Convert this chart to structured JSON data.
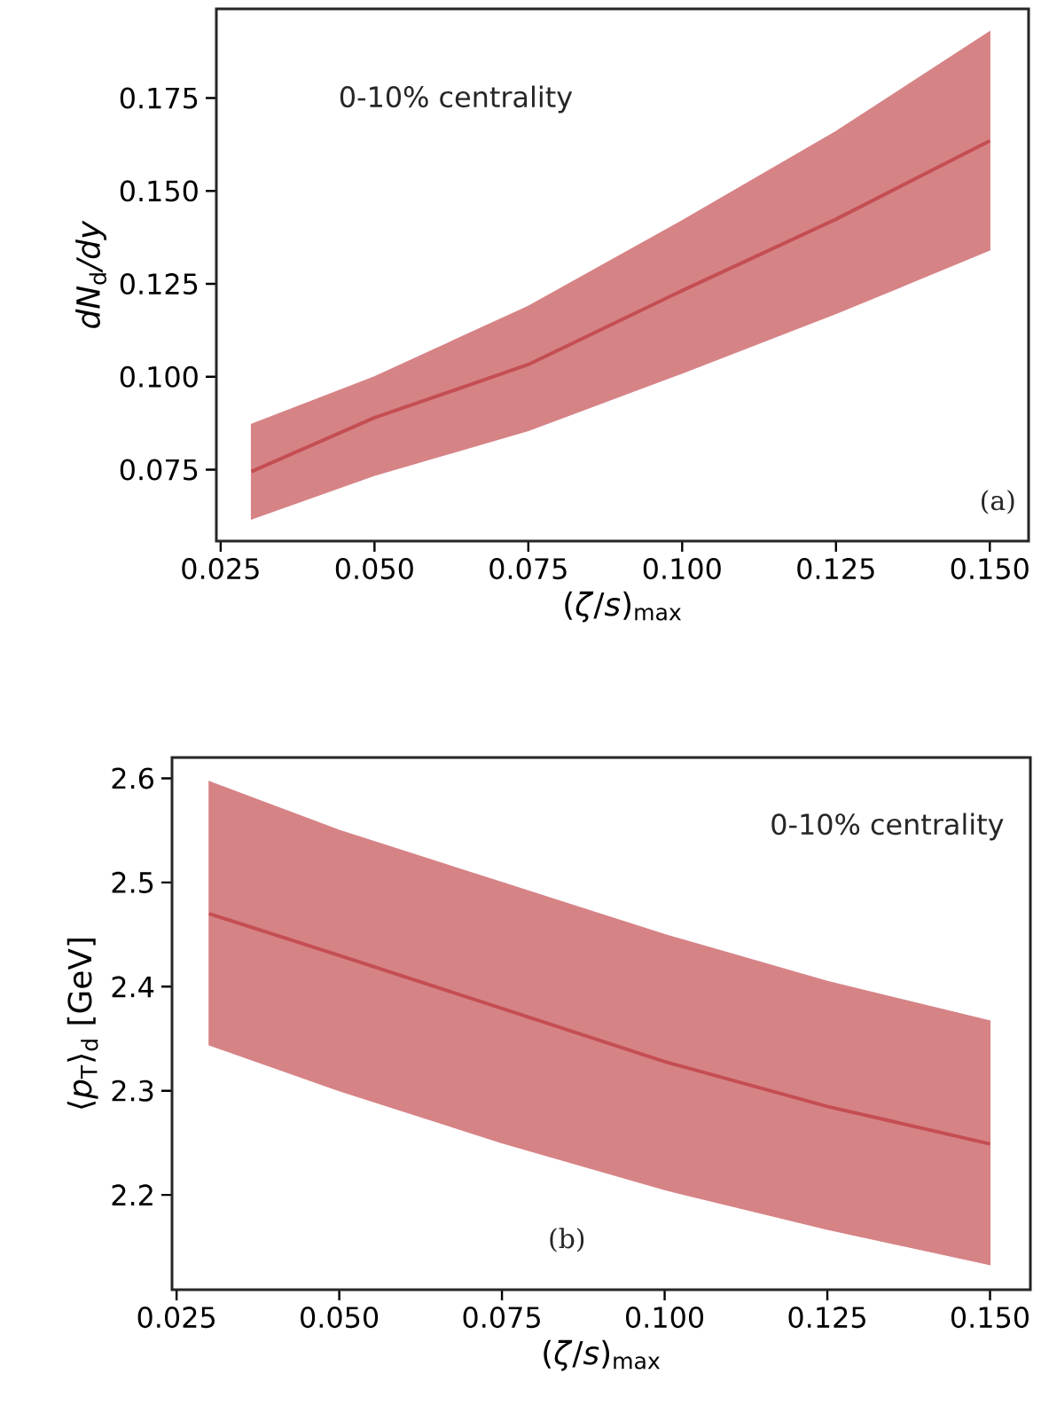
{
  "chart_data": [
    {
      "type": "line",
      "xlabel": "(*ζ*/*s*)$_{max}$",
      "ylabel": "*dN*$_{d}$*/dy*",
      "annotations": [
        "0-10% centrality",
        "(a)"
      ],
      "xlim": [
        0.0243,
        0.1563
      ],
      "ylim": [
        0.0558,
        0.199
      ],
      "xticks": [
        0.025,
        {
          "value": 0.05,
          "label": "0.050"
        },
        0.075,
        {
          "value": 0.1,
          "label": "0.100"
        },
        0.125,
        {
          "value": 0.15,
          "label": "0.150"
        }
      ],
      "yticks": [
        0.075,
        {
          "value": 0.1,
          "label": "0.100"
        },
        0.125,
        {
          "value": 0.15,
          "label": "0.150"
        },
        0.175
      ],
      "series": [
        {
          "color": "#c44e52",
          "x": [
            0.03,
            0.05,
            0.075,
            0.1,
            0.125,
            0.15
          ],
          "values": [
            0.0745,
            0.089,
            0.1033,
            0.1232,
            0.1424,
            0.1635
          ],
          "lower": [
            0.0617,
            0.0735,
            0.0855,
            0.101,
            0.117,
            0.1341
          ],
          "upper": [
            0.0872,
            0.1,
            0.119,
            0.142,
            0.166,
            0.1929
          ]
        }
      ]
    },
    {
      "type": "line",
      "xlabel": "(*ζ*/*s*)$_{max}$",
      "ylabel": "⟨*p*$_{T}$⟩$_{d}$ [GeV]",
      "annotations": [
        "0-10% centrality",
        "(b)"
      ],
      "xlim": [
        0.0243,
        0.1562
      ],
      "ylim": [
        2.109,
        2.62
      ],
      "xticks": [
        0.025,
        {
          "value": 0.05,
          "label": "0.050"
        },
        0.075,
        {
          "value": 0.1,
          "label": "0.100"
        },
        0.125,
        {
          "value": 0.15,
          "label": "0.150"
        }
      ],
      "yticks": [
        2.2,
        2.3,
        2.4,
        2.5,
        2.6
      ],
      "series": [
        {
          "color": "#c44e52",
          "x": [
            0.03,
            0.05,
            0.075,
            0.1,
            0.125,
            0.15
          ],
          "values": [
            2.47,
            2.43,
            2.379,
            2.328,
            2.285,
            2.249
          ],
          "lower": [
            2.344,
            2.3,
            2.25,
            2.205,
            2.167,
            2.133
          ],
          "upper": [
            2.597,
            2.55,
            2.5,
            2.45,
            2.405,
            2.367
          ]
        }
      ]
    }
  ]
}
